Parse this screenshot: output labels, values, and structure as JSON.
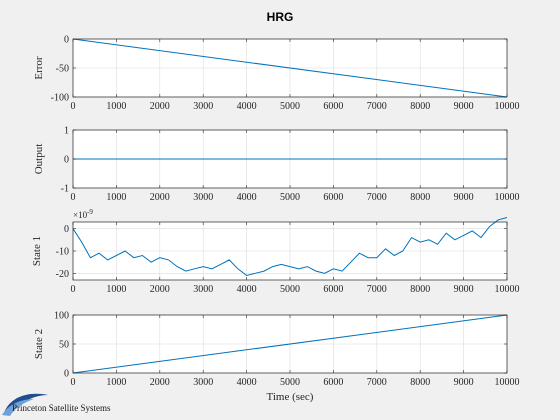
{
  "title": "HRG",
  "footer": {
    "company": "Princeton Satellite Systems"
  },
  "colors": {
    "line": "#0072bd",
    "background": "#f0f0f0",
    "axes_bg": "#ffffff",
    "grid": "#dcdcdc"
  },
  "chart_data": [
    {
      "type": "line",
      "ylabel": "Error",
      "xlim": [
        0,
        10000
      ],
      "ylim": [
        -100,
        0
      ],
      "yticks": [
        -100,
        -50,
        0
      ],
      "xticks": [
        0,
        1000,
        2000,
        3000,
        4000,
        5000,
        6000,
        7000,
        8000,
        9000,
        10000
      ],
      "grid": true,
      "series": [
        {
          "x": [
            0,
            10000
          ],
          "y": [
            0,
            -100
          ]
        }
      ]
    },
    {
      "type": "line",
      "ylabel": "Output",
      "xlim": [
        0,
        10000
      ],
      "ylim": [
        -1,
        1
      ],
      "yticks": [
        -1,
        0,
        1
      ],
      "xticks": [
        0,
        1000,
        2000,
        3000,
        4000,
        5000,
        6000,
        7000,
        8000,
        9000,
        10000
      ],
      "grid": true,
      "series": [
        {
          "x": [
            0,
            10000
          ],
          "y": [
            0,
            0
          ]
        }
      ]
    },
    {
      "type": "line",
      "ylabel": "State 1",
      "exponent_label": "×10",
      "exponent_power": "-9",
      "xlim": [
        0,
        10000
      ],
      "ylim": [
        -23,
        3
      ],
      "yticks": [
        -20,
        -10,
        0
      ],
      "xticks": [
        0,
        1000,
        2000,
        3000,
        4000,
        5000,
        6000,
        7000,
        8000,
        9000,
        10000
      ],
      "grid": true,
      "series": [
        {
          "x": [
            0,
            200,
            400,
            600,
            800,
            1000,
            1200,
            1400,
            1600,
            1800,
            2000,
            2200,
            2400,
            2600,
            2800,
            3000,
            3200,
            3400,
            3600,
            3800,
            4000,
            4200,
            4400,
            4600,
            4800,
            5000,
            5200,
            5400,
            5600,
            5800,
            6000,
            6200,
            6400,
            6600,
            6800,
            7000,
            7200,
            7400,
            7600,
            7800,
            8000,
            8200,
            8400,
            8600,
            8800,
            9000,
            9200,
            9400,
            9600,
            9800,
            10000
          ],
          "y": [
            0,
            -6,
            -13,
            -11,
            -14,
            -12,
            -10,
            -13,
            -12,
            -15,
            -13,
            -14,
            -17,
            -19,
            -18,
            -17,
            -18,
            -16,
            -14,
            -18,
            -21,
            -20,
            -19,
            -17,
            -16,
            -17,
            -18,
            -17,
            -19,
            -20,
            -18,
            -19,
            -15,
            -11,
            -13,
            -13,
            -9,
            -12,
            -10,
            -4,
            -6,
            -5,
            -7,
            -2,
            -5,
            -3,
            -1,
            -4,
            1,
            4,
            5
          ]
        }
      ]
    },
    {
      "type": "line",
      "ylabel": "State 2",
      "xlabel": "Time (sec)",
      "xlim": [
        0,
        10000
      ],
      "ylim": [
        0,
        100
      ],
      "yticks": [
        0,
        50,
        100
      ],
      "xticks": [
        0,
        1000,
        2000,
        3000,
        4000,
        5000,
        6000,
        7000,
        8000,
        9000,
        10000
      ],
      "grid": true,
      "series": [
        {
          "x": [
            0,
            10000
          ],
          "y": [
            0,
            100
          ]
        }
      ]
    }
  ]
}
